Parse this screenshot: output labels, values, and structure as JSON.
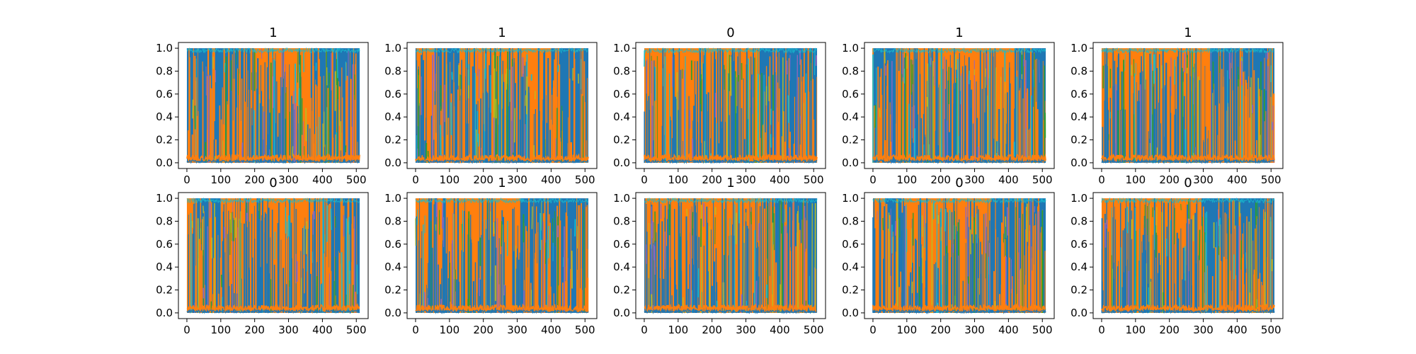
{
  "figure": {
    "background": "#ffffff",
    "colors": {
      "dominant_a": "#1f77b4",
      "dominant_b": "#ff7f0e",
      "accent_cyan": "#17becf",
      "accent_olive": "#bcbd22",
      "accent_green": "#2ca02c",
      "accent_purple": "#9467bd"
    }
  },
  "chart_data": [
    {
      "type": "line",
      "title": "1",
      "xlim": [
        -25,
        535
      ],
      "ylim": [
        -0.05,
        1.05
      ],
      "x_ticks": [
        0,
        100,
        200,
        300,
        400,
        500
      ],
      "y_ticks": [
        0.0,
        0.2,
        0.4,
        0.6,
        0.8,
        1.0
      ],
      "x_tick_labels": [
        "0",
        "100",
        "200",
        "300",
        "400",
        "500"
      ],
      "y_tick_labels": [
        "0.0",
        "0.2",
        "0.4",
        "0.6",
        "0.8",
        "1.0"
      ],
      "segments": [
        {
          "series": "blue",
          "start": 0,
          "end": 75
        },
        {
          "series": "orange",
          "start": 75,
          "end": 85
        },
        {
          "series": "blue",
          "start": 85,
          "end": 190
        },
        {
          "series": "orange",
          "start": 190,
          "end": 365
        },
        {
          "series": "blue",
          "start": 365,
          "end": 510
        }
      ]
    },
    {
      "type": "line",
      "title": "1",
      "xlim": [
        -25,
        535
      ],
      "ylim": [
        -0.05,
        1.05
      ],
      "x_ticks": [
        0,
        100,
        200,
        300,
        400,
        500
      ],
      "y_ticks": [
        0.0,
        0.2,
        0.4,
        0.6,
        0.8,
        1.0
      ],
      "x_tick_labels": [
        "0",
        "100",
        "200",
        "300",
        "400",
        "500"
      ],
      "y_tick_labels": [
        "0.0",
        "0.2",
        "0.4",
        "0.6",
        "0.8",
        "1.0"
      ],
      "segments": [
        {
          "series": "orange",
          "start": 0,
          "end": 55
        },
        {
          "series": "blue",
          "start": 55,
          "end": 130
        },
        {
          "series": "orange",
          "start": 130,
          "end": 400
        },
        {
          "series": "blue",
          "start": 400,
          "end": 510
        }
      ]
    },
    {
      "type": "line",
      "title": "0",
      "xlim": [
        -25,
        535
      ],
      "ylim": [
        -0.05,
        1.05
      ],
      "x_ticks": [
        0,
        100,
        200,
        300,
        400,
        500
      ],
      "y_ticks": [
        0.0,
        0.2,
        0.4,
        0.6,
        0.8,
        1.0
      ],
      "x_tick_labels": [
        "0",
        "100",
        "200",
        "300",
        "400",
        "500"
      ],
      "y_tick_labels": [
        "0.0",
        "0.2",
        "0.4",
        "0.6",
        "0.8",
        "1.0"
      ],
      "segments": [
        {
          "series": "orange",
          "start": 0,
          "end": 320
        },
        {
          "series": "blue",
          "start": 320,
          "end": 510
        }
      ]
    },
    {
      "type": "line",
      "title": "1",
      "xlim": [
        -25,
        535
      ],
      "ylim": [
        -0.05,
        1.05
      ],
      "x_ticks": [
        0,
        100,
        200,
        300,
        400,
        500
      ],
      "y_ticks": [
        0.0,
        0.2,
        0.4,
        0.6,
        0.8,
        1.0
      ],
      "x_tick_labels": [
        "0",
        "100",
        "200",
        "300",
        "400",
        "500"
      ],
      "y_tick_labels": [
        "0.0",
        "0.2",
        "0.4",
        "0.6",
        "0.8",
        "1.0"
      ],
      "segments": [
        {
          "series": "blue",
          "start": 0,
          "end": 90
        },
        {
          "series": "orange",
          "start": 90,
          "end": 420
        },
        {
          "series": "blue",
          "start": 420,
          "end": 510
        }
      ]
    },
    {
      "type": "line",
      "title": "1",
      "xlim": [
        -25,
        535
      ],
      "ylim": [
        -0.05,
        1.05
      ],
      "x_ticks": [
        0,
        100,
        200,
        300,
        400,
        500
      ],
      "y_ticks": [
        0.0,
        0.2,
        0.4,
        0.6,
        0.8,
        1.0
      ],
      "x_tick_labels": [
        "0",
        "100",
        "200",
        "300",
        "400",
        "500"
      ],
      "y_tick_labels": [
        "0.0",
        "0.2",
        "0.4",
        "0.6",
        "0.8",
        "1.0"
      ],
      "segments": [
        {
          "series": "orange",
          "start": 0,
          "end": 320
        },
        {
          "series": "blue",
          "start": 320,
          "end": 510
        }
      ]
    },
    {
      "type": "line",
      "title": "0",
      "xlim": [
        -25,
        535
      ],
      "ylim": [
        -0.05,
        1.05
      ],
      "x_ticks": [
        0,
        100,
        200,
        300,
        400,
        500
      ],
      "y_ticks": [
        0.0,
        0.2,
        0.4,
        0.6,
        0.8,
        1.0
      ],
      "x_tick_labels": [
        "0",
        "100",
        "200",
        "300",
        "400",
        "500"
      ],
      "y_tick_labels": [
        "0.0",
        "0.2",
        "0.4",
        "0.6",
        "0.8",
        "1.0"
      ],
      "segments": [
        {
          "series": "orange",
          "start": 0,
          "end": 25
        },
        {
          "series": "blue",
          "start": 25,
          "end": 100
        },
        {
          "series": "orange",
          "start": 100,
          "end": 400
        },
        {
          "series": "blue",
          "start": 400,
          "end": 510
        }
      ]
    },
    {
      "type": "line",
      "title": "1",
      "xlim": [
        -25,
        535
      ],
      "ylim": [
        -0.05,
        1.05
      ],
      "x_ticks": [
        0,
        100,
        200,
        300,
        400,
        500
      ],
      "y_ticks": [
        0.0,
        0.2,
        0.4,
        0.6,
        0.8,
        1.0
      ],
      "x_tick_labels": [
        "0",
        "100",
        "200",
        "300",
        "400",
        "500"
      ],
      "y_tick_labels": [
        "0.0",
        "0.2",
        "0.4",
        "0.6",
        "0.8",
        "1.0"
      ],
      "segments": [
        {
          "series": "orange",
          "start": 0,
          "end": 310
        },
        {
          "series": "blue",
          "start": 310,
          "end": 510
        }
      ]
    },
    {
      "type": "line",
      "title": "1",
      "xlim": [
        -25,
        535
      ],
      "ylim": [
        -0.05,
        1.05
      ],
      "x_ticks": [
        0,
        100,
        200,
        300,
        400,
        500
      ],
      "y_ticks": [
        0.0,
        0.2,
        0.4,
        0.6,
        0.8,
        1.0
      ],
      "x_tick_labels": [
        "0",
        "100",
        "200",
        "300",
        "400",
        "500"
      ],
      "y_tick_labels": [
        "0.0",
        "0.2",
        "0.4",
        "0.6",
        "0.8",
        "1.0"
      ],
      "segments": [
        {
          "series": "orange",
          "start": 0,
          "end": 345
        },
        {
          "series": "blue",
          "start": 345,
          "end": 510
        }
      ]
    },
    {
      "type": "line",
      "title": "0",
      "xlim": [
        -25,
        535
      ],
      "ylim": [
        -0.05,
        1.05
      ],
      "x_ticks": [
        0,
        100,
        200,
        300,
        400,
        500
      ],
      "y_ticks": [
        0.0,
        0.2,
        0.4,
        0.6,
        0.8,
        1.0
      ],
      "x_tick_labels": [
        "0",
        "100",
        "200",
        "300",
        "400",
        "500"
      ],
      "y_tick_labels": [
        "0.0",
        "0.2",
        "0.4",
        "0.6",
        "0.8",
        "1.0"
      ],
      "segments": [
        {
          "series": "orange",
          "start": 0,
          "end": 35
        },
        {
          "series": "blue",
          "start": 35,
          "end": 85
        },
        {
          "series": "orange",
          "start": 85,
          "end": 350
        },
        {
          "series": "blue",
          "start": 350,
          "end": 510
        }
      ]
    },
    {
      "type": "line",
      "title": "0",
      "xlim": [
        -25,
        535
      ],
      "ylim": [
        -0.05,
        1.05
      ],
      "x_ticks": [
        0,
        100,
        200,
        300,
        400,
        500
      ],
      "y_ticks": [
        0.0,
        0.2,
        0.4,
        0.6,
        0.8,
        1.0
      ],
      "x_tick_labels": [
        "0",
        "100",
        "200",
        "300",
        "400",
        "500"
      ],
      "y_tick_labels": [
        "0.0",
        "0.2",
        "0.4",
        "0.6",
        "0.8",
        "1.0"
      ],
      "segments": [
        {
          "series": "orange",
          "start": 0,
          "end": 290
        },
        {
          "series": "blue",
          "start": 290,
          "end": 510
        }
      ]
    }
  ]
}
